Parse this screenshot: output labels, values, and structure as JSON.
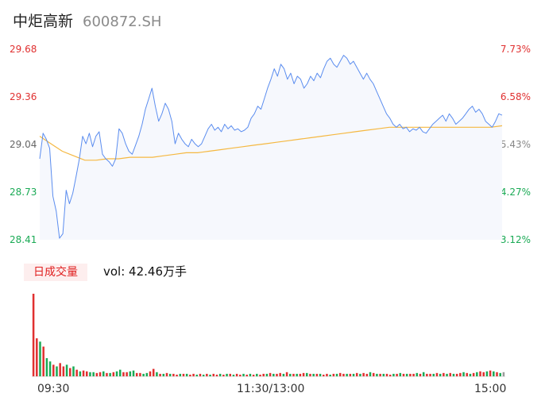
{
  "header": {
    "name": "中炬高新",
    "code": "600872.SH"
  },
  "volume_panel": {
    "tab_label": "日成交量",
    "vol_text": "vol: 42.46万手"
  },
  "colors": {
    "price_line": "#5b8def",
    "avg_line": "#f5b841",
    "up": "#e03030",
    "down": "#1aaa55",
    "flat": "#9a9a9a",
    "area": "#f6f8fd"
  },
  "chart_data": [
    {
      "type": "line",
      "title": "",
      "y_ticks_left": [
        "29.68",
        "29.36",
        "29.04",
        "28.73",
        "28.41"
      ],
      "y_ticks_right": [
        "7.73%",
        "6.58%",
        "5.43%",
        "4.27%",
        "3.12%"
      ],
      "ylim": [
        28.41,
        29.68
      ],
      "x_ticks": [
        "09:30",
        "11:30/13:00",
        "15:00"
      ],
      "price": [
        28.95,
        29.12,
        29.08,
        29.02,
        28.7,
        28.6,
        28.42,
        28.45,
        28.74,
        28.65,
        28.72,
        28.83,
        28.95,
        29.1,
        29.05,
        29.12,
        29.03,
        29.1,
        29.13,
        28.98,
        28.95,
        28.93,
        28.9,
        28.95,
        29.15,
        29.12,
        29.05,
        29.0,
        28.98,
        29.04,
        29.1,
        29.18,
        29.28,
        29.35,
        29.42,
        29.3,
        29.2,
        29.25,
        29.32,
        29.28,
        29.2,
        29.05,
        29.12,
        29.08,
        29.05,
        29.03,
        29.08,
        29.05,
        29.03,
        29.05,
        29.1,
        29.15,
        29.18,
        29.14,
        29.16,
        29.13,
        29.18,
        29.15,
        29.17,
        29.14,
        29.15,
        29.13,
        29.14,
        29.16,
        29.22,
        29.25,
        29.3,
        29.28,
        29.35,
        29.42,
        29.48,
        29.55,
        29.5,
        29.58,
        29.55,
        29.48,
        29.52,
        29.45,
        29.5,
        29.48,
        29.42,
        29.45,
        29.5,
        29.47,
        29.52,
        29.49,
        29.55,
        29.6,
        29.62,
        29.58,
        29.56,
        29.6,
        29.64,
        29.62,
        29.58,
        29.6,
        29.56,
        29.52,
        29.48,
        29.52,
        29.48,
        29.45,
        29.4,
        29.35,
        29.3,
        29.25,
        29.22,
        29.18,
        29.16,
        29.18,
        29.15,
        29.16,
        29.13,
        29.15,
        29.14,
        29.16,
        29.13,
        29.12,
        29.15,
        29.18,
        29.2,
        29.22,
        29.24,
        29.2,
        29.25,
        29.22,
        29.18,
        29.2,
        29.22,
        29.25,
        29.28,
        29.3,
        29.26,
        29.28,
        29.25,
        29.2,
        29.18,
        29.16,
        29.2,
        29.25,
        29.24
      ],
      "avg": [
        29.1,
        29.05,
        29.0,
        28.97,
        28.94,
        28.94,
        28.95,
        28.95,
        28.96,
        28.96,
        28.96,
        28.97,
        28.98,
        28.99,
        28.99,
        29.0,
        29.01,
        29.02,
        29.03,
        29.04,
        29.05,
        29.06,
        29.07,
        29.08,
        29.09,
        29.1,
        29.11,
        29.12,
        29.13,
        29.14,
        29.15,
        29.16,
        29.16,
        29.16,
        29.16,
        29.16,
        29.16,
        29.16,
        29.16,
        29.16,
        29.16,
        29.17
      ],
      "series": [
        {
          "name": "",
          "values": "price"
        },
        {
          "name": "",
          "values": "avg"
        }
      ]
    },
    {
      "type": "bar",
      "title": "",
      "x_ticks": [
        "09:30",
        "11:30/13:00",
        "15:00"
      ],
      "volumes": [
        100,
        46,
        42,
        36,
        22,
        18,
        14,
        12,
        16,
        12,
        14,
        10,
        12,
        8,
        6,
        7,
        6,
        5,
        5,
        4,
        5,
        6,
        4,
        4,
        5,
        6,
        8,
        5,
        5,
        6,
        7,
        4,
        4,
        3,
        4,
        6,
        9,
        5,
        3,
        3,
        4,
        3,
        3,
        2,
        3,
        3,
        3,
        2,
        3,
        2,
        3,
        2,
        3,
        2,
        3,
        2,
        3,
        2,
        3,
        3,
        2,
        3,
        2,
        3,
        2,
        3,
        2,
        3,
        2,
        3,
        3,
        4,
        3,
        3,
        4,
        3,
        5,
        3,
        3,
        3,
        3,
        4,
        4,
        3,
        3,
        3,
        3,
        2,
        3,
        2,
        3,
        3,
        4,
        3,
        3,
        3,
        3,
        4,
        3,
        4,
        3,
        5,
        4,
        3,
        3,
        3,
        3,
        2,
        3,
        3,
        4,
        3,
        3,
        3,
        3,
        4,
        3,
        5,
        3,
        3,
        3,
        4,
        3,
        4,
        3,
        4,
        3,
        3,
        4,
        5,
        4,
        3,
        4,
        5,
        6,
        5,
        6,
        7,
        6,
        5,
        4,
        5
      ],
      "directions": [
        "up",
        "up",
        "down",
        "up",
        "down",
        "down",
        "up",
        "down",
        "up",
        "up",
        "down",
        "up",
        "down",
        "up",
        "down",
        "up",
        "up",
        "down",
        "down",
        "up",
        "up",
        "down",
        "up",
        "down",
        "up",
        "down",
        "down",
        "up",
        "up",
        "down",
        "down",
        "up",
        "up",
        "down",
        "down",
        "up",
        "up",
        "down",
        "up",
        "down",
        "up",
        "down",
        "up",
        "up",
        "down",
        "up",
        "down",
        "up",
        "up",
        "down",
        "up",
        "down",
        "up",
        "down",
        "up",
        "up",
        "down",
        "up",
        "down",
        "up",
        "down",
        "up",
        "up",
        "down",
        "up",
        "down",
        "up",
        "down",
        "up",
        "up",
        "down",
        "up",
        "down",
        "up",
        "up",
        "down",
        "up",
        "down",
        "up",
        "down",
        "up",
        "up",
        "down",
        "up",
        "down",
        "up",
        "down",
        "up",
        "up",
        "down",
        "up",
        "down",
        "up",
        "up",
        "down",
        "up",
        "down",
        "up",
        "down",
        "up",
        "up",
        "down",
        "up",
        "down",
        "up",
        "down",
        "up",
        "up",
        "down",
        "up",
        "down",
        "up",
        "down",
        "up",
        "up",
        "down",
        "up",
        "down",
        "up",
        "up",
        "down",
        "up",
        "down",
        "up",
        "down",
        "up",
        "down",
        "up",
        "up",
        "down",
        "up",
        "down",
        "up",
        "down",
        "up",
        "up",
        "down",
        "up",
        "down",
        "up",
        "down"
      ]
    }
  ]
}
